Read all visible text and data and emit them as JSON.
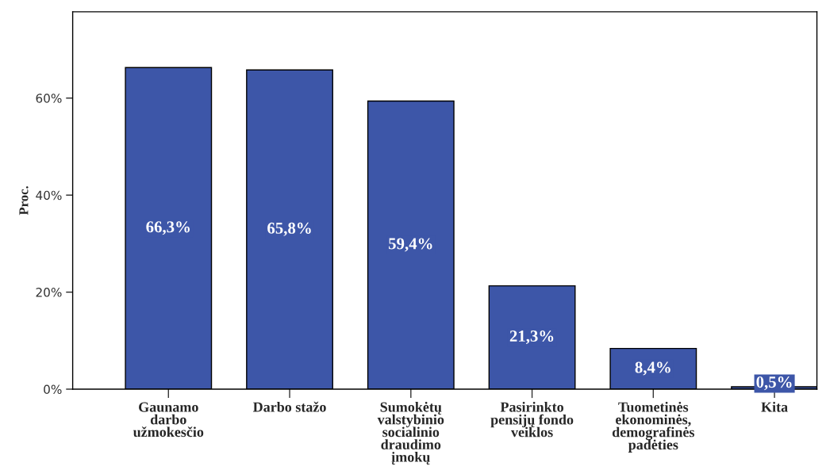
{
  "chart_data": {
    "type": "bar",
    "ylabel": "Proc.",
    "categories": [
      "Gaunamo\ndarbo\nužmokesčio",
      "Darbo stažo",
      "Sumokėtų\nvalstybinio\nsocialinio\ndraudimo\nįmokų",
      "Pasirinkto\npensijų fondo\nveiklos",
      "Tuometinės\nekonominės,\ndemografinės\npadėties",
      "Kita"
    ],
    "values": [
      66.3,
      65.8,
      59.4,
      21.3,
      8.4,
      0.5
    ],
    "value_labels": [
      "66,3%",
      "65,8%",
      "59,4%",
      "21,3%",
      "8,4%",
      "0,5%"
    ],
    "color": "#3d56a8",
    "ylim": [
      0,
      77.8
    ],
    "yticks": [
      {
        "value": 0,
        "label": "0%"
      },
      {
        "value": 20,
        "label": "20%"
      },
      {
        "value": 40,
        "label": "40%"
      },
      {
        "value": 60,
        "label": "60%"
      }
    ],
    "grid": false
  }
}
